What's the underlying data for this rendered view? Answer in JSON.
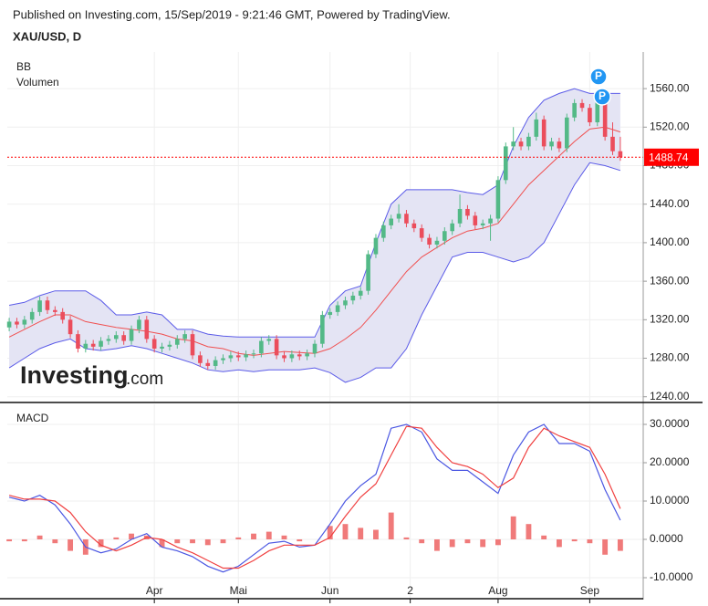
{
  "header": {
    "published": "Published on Investing.com, 15/Sep/2019 - 9:21:46 GMT, Powered by TradingView.",
    "symbol": "XAU/USD, D"
  },
  "chart_data": [
    {
      "type": "candlestick",
      "legend": [
        "BB",
        "Volumen"
      ],
      "watermark": [
        "Investing",
        ".com"
      ],
      "markers": [
        "P",
        "P"
      ],
      "xlim": [
        -0.5,
        166
      ],
      "ylim": [
        1235,
        1598
      ],
      "yticks": [
        {
          "value": 1240,
          "label": "1240.00"
        },
        {
          "value": 1280,
          "label": "1280.00"
        },
        {
          "value": 1320,
          "label": "1320.00"
        },
        {
          "value": 1360,
          "label": "1360.00"
        },
        {
          "value": 1400,
          "label": "1400.00"
        },
        {
          "value": 1440,
          "label": "1440.00"
        },
        {
          "value": 1480,
          "label": "1480.00"
        },
        {
          "value": 1520,
          "label": "1520.00"
        },
        {
          "value": 1560,
          "label": "1560.00"
        }
      ],
      "up_color": "#53b987",
      "down_color": "#eb4d5c",
      "x": [
        0,
        2,
        4,
        6,
        8,
        10,
        12,
        14,
        16,
        18,
        20,
        22,
        24,
        26,
        28,
        30,
        32,
        34,
        36,
        38,
        40,
        42,
        44,
        46,
        48,
        50,
        52,
        54,
        56,
        58,
        60,
        62,
        64,
        66,
        68,
        70,
        72,
        74,
        76,
        78,
        80,
        82,
        84,
        86,
        88,
        90,
        92,
        94,
        96,
        98,
        100,
        102,
        104,
        106,
        108,
        110,
        112,
        114,
        116,
        118,
        120,
        122,
        124,
        126,
        128,
        130,
        132,
        134,
        136,
        138,
        140,
        142,
        144,
        146,
        148,
        150,
        152,
        154,
        156,
        158,
        160
      ],
      "open": [
        1312,
        1318,
        1315,
        1320,
        1328,
        1340,
        1330,
        1328,
        1320,
        1305,
        1290,
        1295,
        1292,
        1298,
        1300,
        1304,
        1298,
        1310,
        1320,
        1300,
        1290,
        1292,
        1294,
        1300,
        1305,
        1283,
        1275,
        1272,
        1278,
        1280,
        1283,
        1281,
        1284,
        1285,
        1298,
        1300,
        1283,
        1280,
        1284,
        1282,
        1285,
        1295,
        1325,
        1328,
        1335,
        1340,
        1345,
        1350,
        1388,
        1405,
        1418,
        1425,
        1430,
        1420,
        1415,
        1405,
        1398,
        1402,
        1412,
        1420,
        1435,
        1428,
        1418,
        1420,
        1425,
        1465,
        1500,
        1505,
        1500,
        1510,
        1528,
        1500,
        1505,
        1498,
        1530,
        1545,
        1540,
        1525,
        1552,
        1510,
        1495
      ],
      "high": [
        1322,
        1322,
        1324,
        1332,
        1344,
        1344,
        1334,
        1332,
        1324,
        1309,
        1299,
        1299,
        1302,
        1304,
        1308,
        1308,
        1314,
        1324,
        1324,
        1304,
        1296,
        1298,
        1304,
        1309,
        1309,
        1287,
        1279,
        1282,
        1284,
        1287,
        1287,
        1288,
        1289,
        1302,
        1304,
        1304,
        1287,
        1288,
        1288,
        1289,
        1299,
        1329,
        1332,
        1339,
        1344,
        1349,
        1354,
        1392,
        1409,
        1422,
        1429,
        1440,
        1434,
        1424,
        1419,
        1409,
        1406,
        1416,
        1424,
        1450,
        1439,
        1432,
        1424,
        1429,
        1469,
        1504,
        1520,
        1509,
        1514,
        1535,
        1532,
        1509,
        1509,
        1534,
        1549,
        1549,
        1544,
        1556,
        1556,
        1525,
        1510
      ],
      "low": [
        1308,
        1311,
        1311,
        1316,
        1324,
        1326,
        1324,
        1316,
        1301,
        1286,
        1286,
        1288,
        1288,
        1294,
        1296,
        1294,
        1294,
        1306,
        1296,
        1286,
        1286,
        1288,
        1290,
        1296,
        1279,
        1271,
        1268,
        1268,
        1274,
        1276,
        1277,
        1277,
        1280,
        1281,
        1294,
        1279,
        1276,
        1276,
        1278,
        1278,
        1281,
        1291,
        1321,
        1324,
        1331,
        1336,
        1341,
        1346,
        1384,
        1401,
        1414,
        1421,
        1416,
        1411,
        1401,
        1394,
        1394,
        1398,
        1408,
        1416,
        1424,
        1414,
        1414,
        1402,
        1421,
        1461,
        1496,
        1496,
        1496,
        1506,
        1496,
        1496,
        1494,
        1494,
        1526,
        1536,
        1521,
        1521,
        1506,
        1491,
        1485
      ],
      "close": [
        1318,
        1315,
        1320,
        1328,
        1340,
        1330,
        1328,
        1320,
        1305,
        1290,
        1295,
        1292,
        1298,
        1300,
        1304,
        1298,
        1310,
        1320,
        1300,
        1290,
        1292,
        1294,
        1300,
        1305,
        1283,
        1275,
        1272,
        1278,
        1280,
        1283,
        1281,
        1284,
        1285,
        1298,
        1300,
        1283,
        1280,
        1284,
        1282,
        1285,
        1295,
        1325,
        1328,
        1335,
        1340,
        1345,
        1350,
        1388,
        1405,
        1418,
        1425,
        1430,
        1420,
        1415,
        1405,
        1398,
        1402,
        1412,
        1420,
        1435,
        1428,
        1418,
        1420,
        1425,
        1465,
        1500,
        1505,
        1500,
        1510,
        1528,
        1500,
        1505,
        1498,
        1530,
        1545,
        1540,
        1525,
        1552,
        1510,
        1495,
        1488.74
      ],
      "bands": {
        "x": [
          0,
          4,
          8,
          12,
          16,
          20,
          24,
          28,
          32,
          36,
          40,
          44,
          48,
          52,
          56,
          60,
          64,
          68,
          72,
          76,
          80,
          84,
          88,
          92,
          96,
          100,
          104,
          108,
          112,
          116,
          120,
          124,
          128,
          132,
          136,
          140,
          144,
          148,
          152,
          156,
          160
        ],
        "upper": [
          1335,
          1338,
          1345,
          1350,
          1350,
          1350,
          1340,
          1325,
          1325,
          1328,
          1325,
          1310,
          1310,
          1305,
          1303,
          1302,
          1302,
          1302,
          1302,
          1302,
          1302,
          1335,
          1350,
          1355,
          1400,
          1440,
          1455,
          1455,
          1455,
          1455,
          1452,
          1450,
          1460,
          1500,
          1530,
          1548,
          1555,
          1560,
          1555,
          1555,
          1555
        ],
        "middle": [
          1302,
          1310,
          1318,
          1325,
          1325,
          1318,
          1315,
          1312,
          1310,
          1308,
          1305,
          1300,
          1298,
          1292,
          1290,
          1285,
          1283,
          1285,
          1287,
          1286,
          1285,
          1290,
          1300,
          1312,
          1330,
          1350,
          1370,
          1385,
          1395,
          1405,
          1412,
          1415,
          1420,
          1440,
          1460,
          1475,
          1490,
          1505,
          1518,
          1520,
          1515
        ],
        "lower": [
          1270,
          1280,
          1290,
          1296,
          1300,
          1290,
          1288,
          1290,
          1293,
          1290,
          1285,
          1280,
          1275,
          1268,
          1266,
          1268,
          1266,
          1268,
          1268,
          1268,
          1270,
          1265,
          1255,
          1260,
          1270,
          1270,
          1290,
          1325,
          1355,
          1385,
          1390,
          1390,
          1385,
          1380,
          1385,
          1400,
          1430,
          1460,
          1483,
          1480,
          1475
        ],
        "band_color": "#5b5be8",
        "middle_color": "#f05050",
        "fill": "#e4e4f4"
      },
      "last_price": 1488.74,
      "last_price_color": "#ff0000"
    },
    {
      "type": "line",
      "title": "MACD",
      "xlim": [
        -0.5,
        166
      ],
      "ylim": [
        -15.24,
        35.24
      ],
      "yticks": [
        {
          "value": 30,
          "label": "30.0000"
        },
        {
          "value": 20,
          "label": "20.0000"
        },
        {
          "value": 10,
          "label": "10.0000"
        },
        {
          "value": 0,
          "label": "0.0000"
        },
        {
          "value": -10,
          "label": "-10.0000"
        }
      ],
      "xticks": [
        {
          "value": 38,
          "label": "Apr"
        },
        {
          "value": 60,
          "label": "Mai"
        },
        {
          "value": 84,
          "label": "Jun"
        },
        {
          "value": 105,
          "label": "2"
        },
        {
          "value": 128,
          "label": "Aug"
        },
        {
          "value": 152,
          "label": "Sep"
        }
      ],
      "x": [
        0,
        4,
        8,
        12,
        16,
        20,
        24,
        28,
        32,
        36,
        40,
        44,
        48,
        52,
        56,
        60,
        64,
        68,
        72,
        76,
        80,
        84,
        88,
        92,
        96,
        100,
        104,
        108,
        112,
        116,
        120,
        124,
        128,
        132,
        136,
        140,
        144,
        148,
        152,
        156,
        160
      ],
      "series": [
        {
          "color": "#4a56e2",
          "values": [
            11,
            10,
            11.5,
            9,
            4,
            -2,
            -3.5,
            -2.5,
            0,
            1.5,
            -2,
            -3,
            -4.5,
            -7,
            -8.5,
            -7,
            -4,
            -1,
            -0.5,
            -2,
            -1.5,
            4,
            10,
            14,
            17,
            29,
            30,
            28,
            21,
            18,
            18,
            15,
            12,
            22,
            28,
            30,
            25,
            25,
            23,
            13,
            5
          ]
        },
        {
          "color": "#f04040",
          "values": [
            11.5,
            10.5,
            10.5,
            10,
            7,
            2,
            -1.5,
            -3,
            -1.5,
            0.5,
            0,
            -2,
            -3.5,
            -5.5,
            -7.5,
            -7.5,
            -5.5,
            -3,
            -1.5,
            -1.5,
            -1.5,
            0.5,
            6,
            11,
            14.5,
            22,
            29.5,
            29,
            24,
            20,
            19,
            17,
            13.5,
            16,
            24,
            29,
            27,
            25.5,
            24,
            17,
            8
          ]
        }
      ],
      "histogram": {
        "color": "#f07a7a",
        "values": [
          -0.5,
          -0.5,
          1,
          -1,
          -3,
          -4,
          -2,
          0.5,
          1.5,
          1,
          -2,
          -1,
          -1,
          -1.5,
          -1,
          0.5,
          1.5,
          2,
          1,
          -0.5,
          0,
          3.5,
          4,
          3,
          2.5,
          7,
          0.5,
          -1,
          -3,
          -2,
          -1,
          -2,
          -1.5,
          6,
          4,
          1,
          -2,
          -0.5,
          -1,
          -4,
          -3
        ]
      }
    }
  ]
}
